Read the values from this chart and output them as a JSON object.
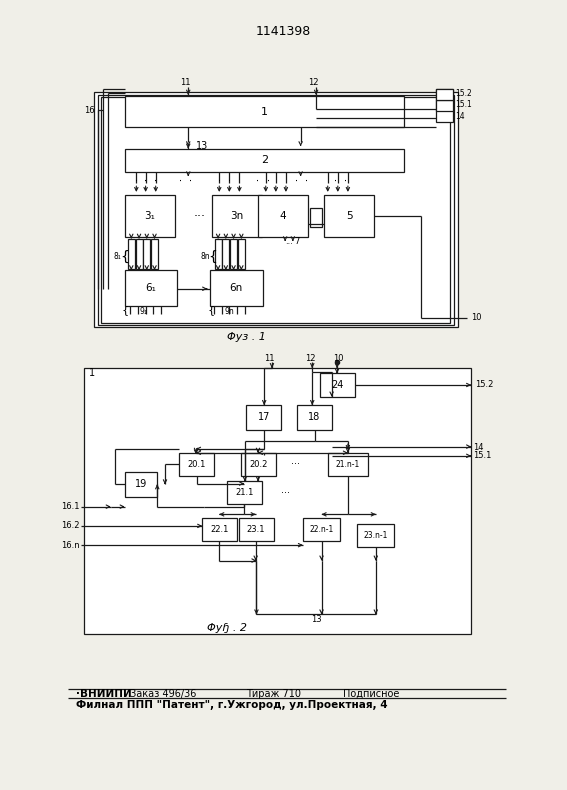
{
  "title": "1141398",
  "bg_color": "#f0efe8",
  "lc": "#1a1a1a",
  "lw": 0.9
}
